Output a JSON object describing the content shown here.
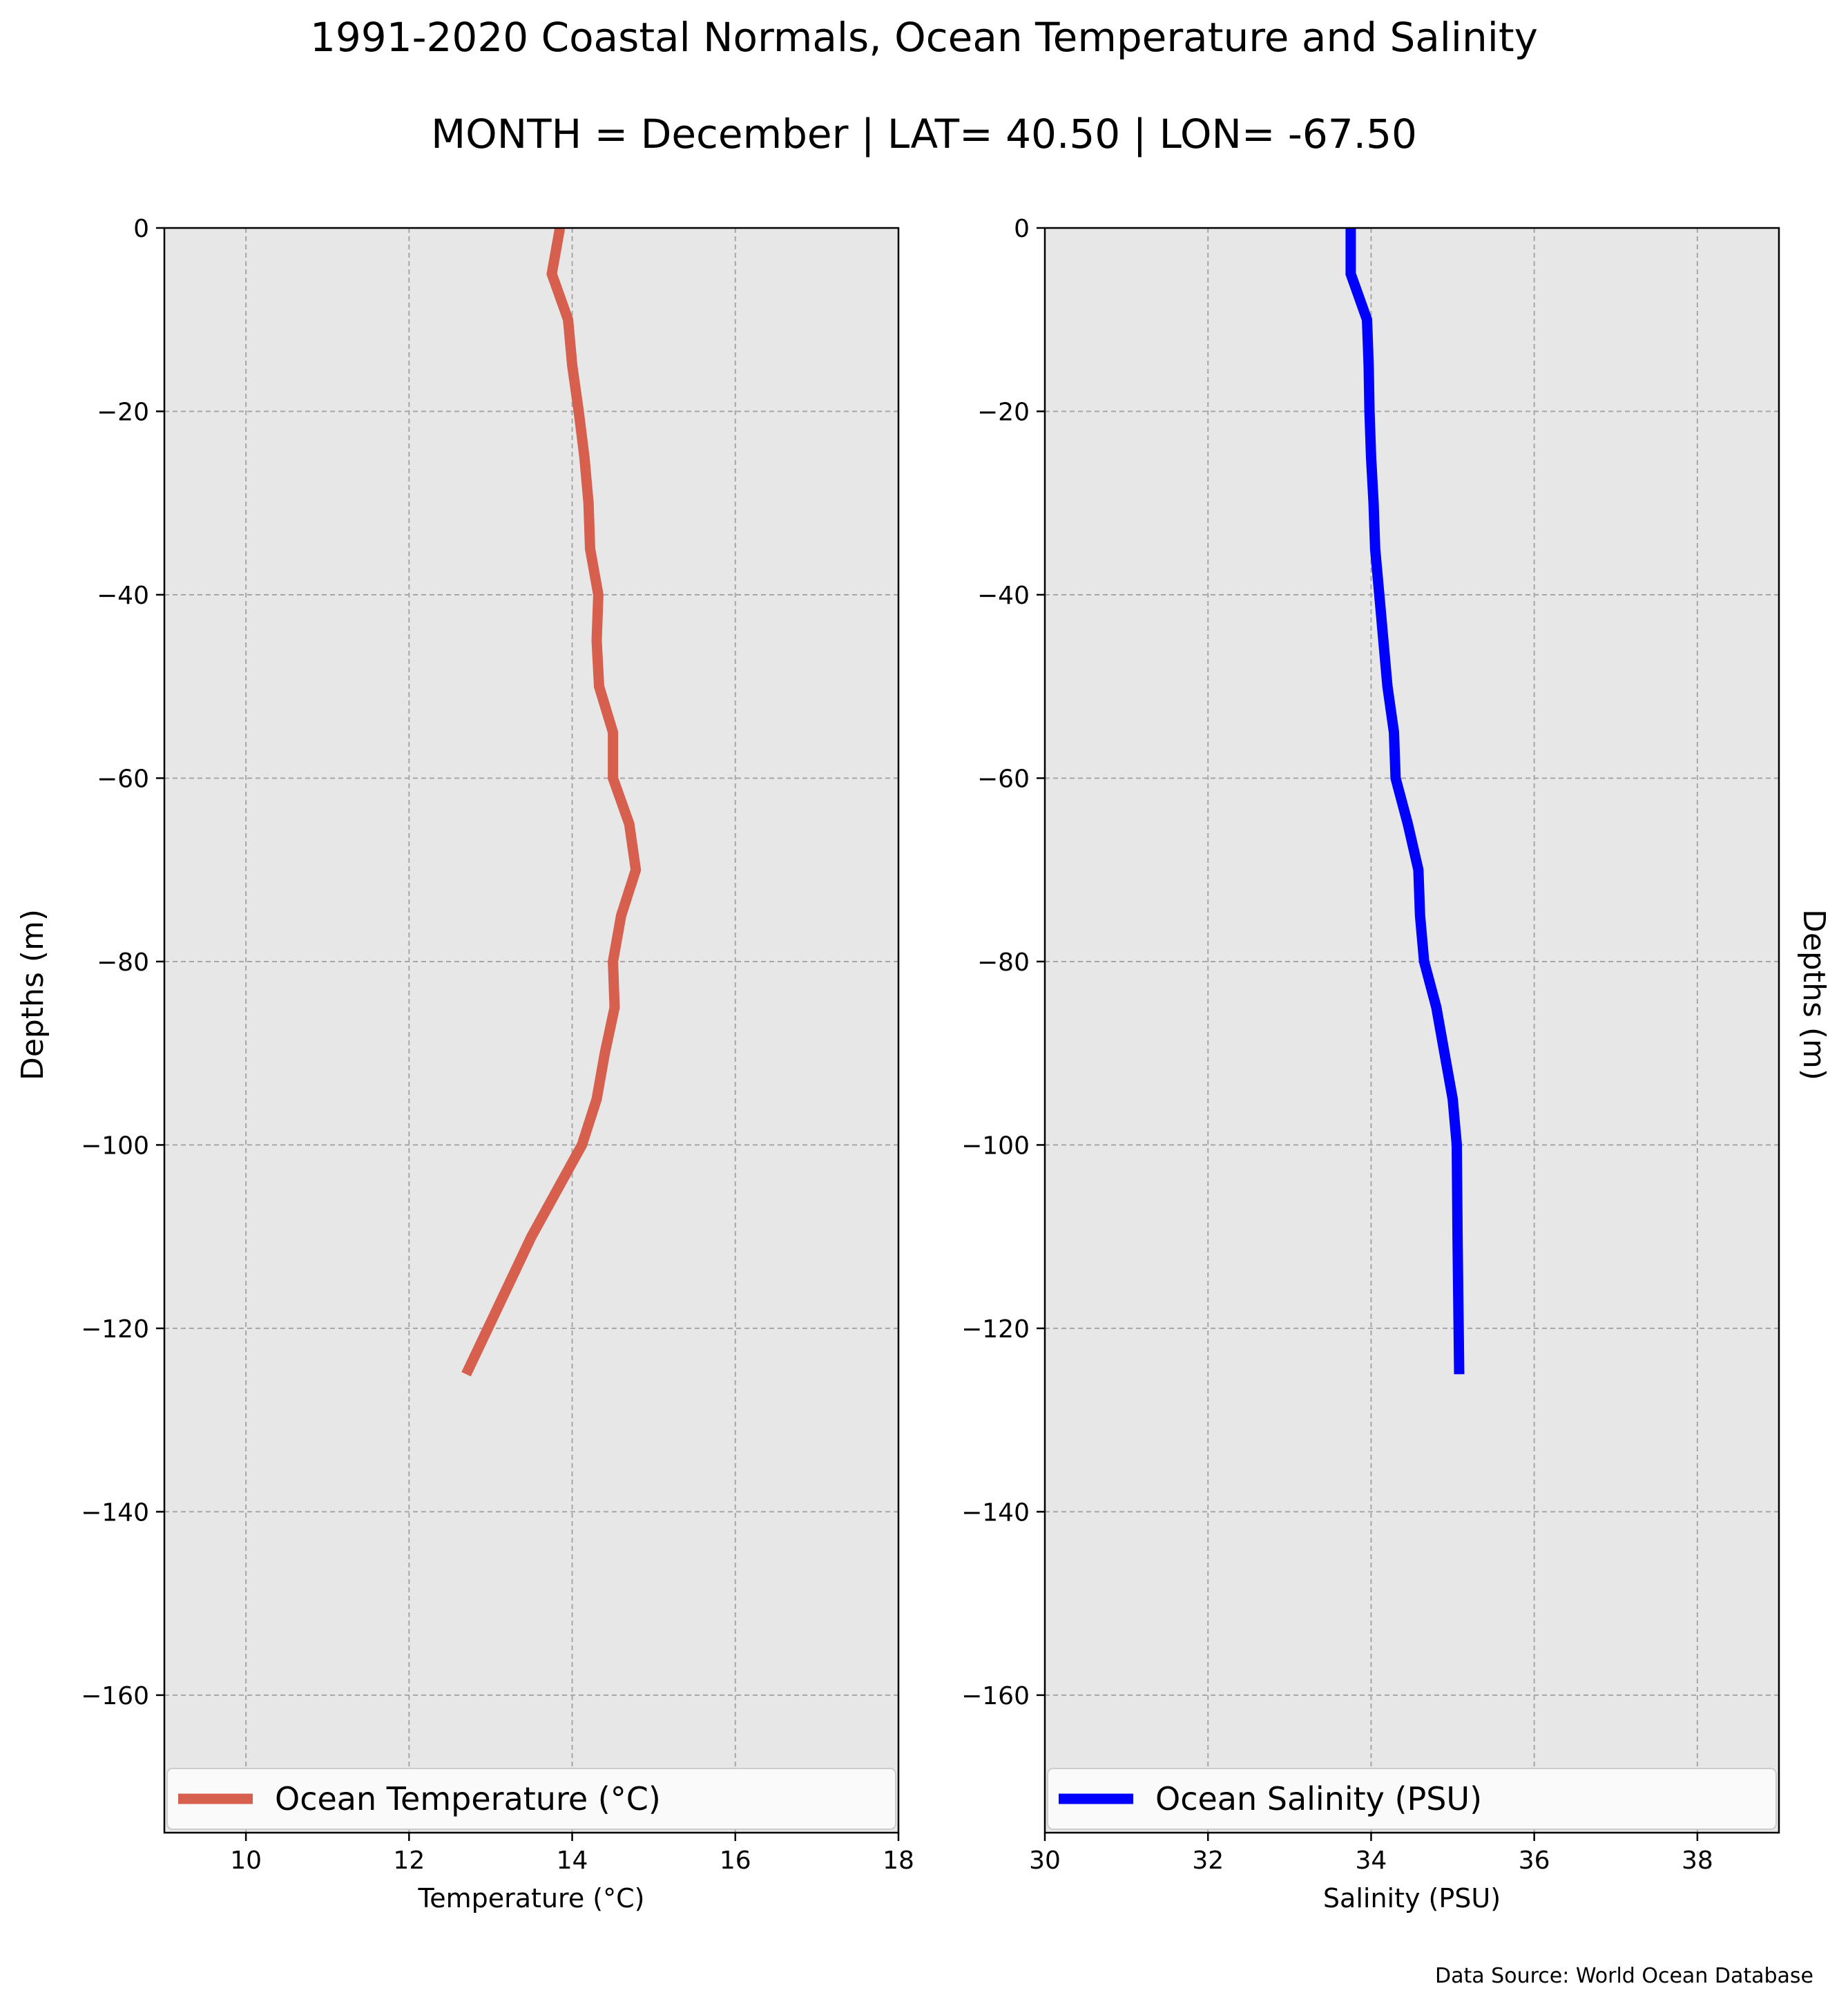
{
  "header": {
    "title": "1991-2020 Coastal Normals, Ocean Temperature and Salinity",
    "subtitle": "MONTH = December | LAT= 40.50 | LON= -67.50"
  },
  "footer": {
    "source": "Data Source: World Ocean Database"
  },
  "chart_data": [
    {
      "type": "line",
      "orientation": "depth-profile",
      "title": "",
      "xlabel": "Temperature (°C)",
      "ylabel": "Depths (m)",
      "xlim": [
        9,
        18
      ],
      "ylim": [
        -175,
        0
      ],
      "xticks": [
        10,
        12,
        14,
        16,
        18
      ],
      "yticks": [
        0,
        -20,
        -40,
        -60,
        -80,
        -100,
        -120,
        -140,
        -160
      ],
      "grid": true,
      "legend_position": "bottom",
      "series": [
        {
          "name": "Ocean Temperature (°C)",
          "color": "#d65f4e",
          "x": [
            13.85,
            13.75,
            13.95,
            14.0,
            14.08,
            14.15,
            14.2,
            14.22,
            14.32,
            14.3,
            14.33,
            14.5,
            14.5,
            14.7,
            14.78,
            14.6,
            14.5,
            14.52,
            14.4,
            14.3,
            14.12,
            13.5,
            12.7
          ],
          "y": [
            0,
            -5,
            -10,
            -15,
            -20,
            -25,
            -30,
            -35,
            -40,
            -45,
            -50,
            -55,
            -60,
            -65,
            -70,
            -75,
            -80,
            -85,
            -90,
            -95,
            -100,
            -110,
            -125
          ]
        }
      ]
    },
    {
      "type": "line",
      "orientation": "depth-profile",
      "title": "",
      "xlabel": "Salinity (PSU)",
      "ylabel": "Depths (m)",
      "xlim": [
        30,
        39
      ],
      "ylim": [
        -175,
        0
      ],
      "xticks": [
        30,
        32,
        34,
        36,
        38
      ],
      "yticks": [
        0,
        -20,
        -40,
        -60,
        -80,
        -100,
        -120,
        -140,
        -160
      ],
      "grid": true,
      "legend_position": "bottom",
      "series": [
        {
          "name": "Ocean Salinity (PSU)",
          "color": "#0000ff",
          "x": [
            33.75,
            33.75,
            33.95,
            33.97,
            33.98,
            34.0,
            34.03,
            34.05,
            34.1,
            34.15,
            34.2,
            34.28,
            34.3,
            34.45,
            34.58,
            34.6,
            34.65,
            34.8,
            34.9,
            35.0,
            35.05,
            35.06,
            35.08
          ],
          "y": [
            0,
            -5,
            -10,
            -15,
            -20,
            -25,
            -30,
            -35,
            -40,
            -45,
            -50,
            -55,
            -60,
            -65,
            -70,
            -75,
            -80,
            -85,
            -90,
            -95,
            -100,
            -110,
            -125
          ]
        }
      ]
    }
  ]
}
